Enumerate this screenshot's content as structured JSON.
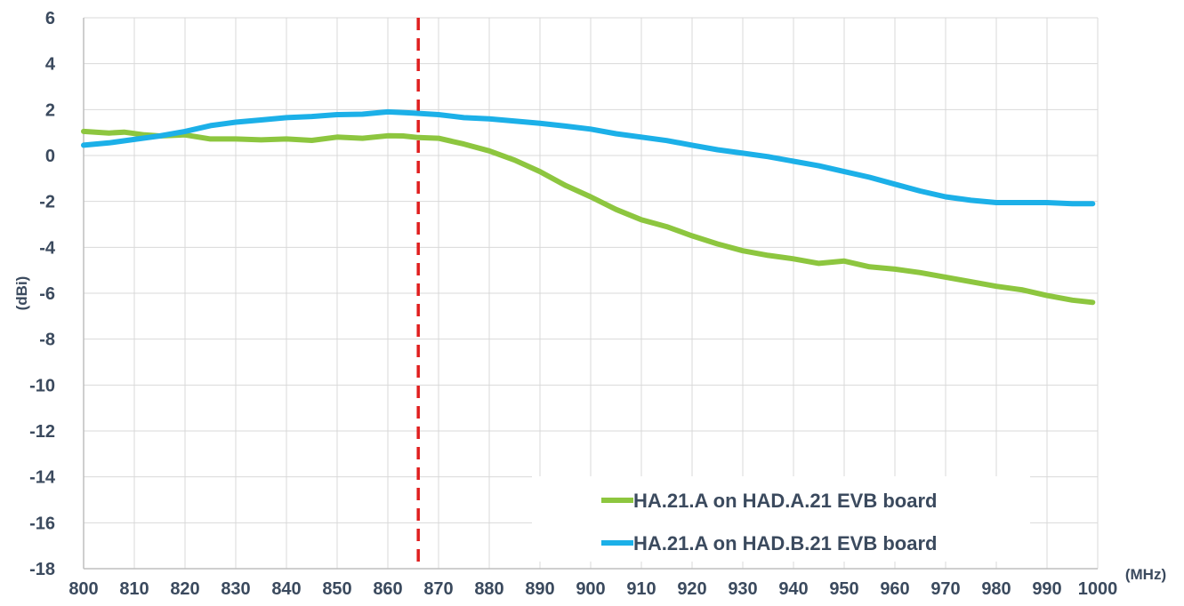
{
  "chart_data": {
    "type": "line",
    "title": "",
    "xlabel": "(MHz)",
    "ylabel": "(dBi)",
    "xlim": [
      800,
      1000
    ],
    "ylim": [
      -18,
      6
    ],
    "x_ticks": [
      800,
      810,
      820,
      830,
      840,
      850,
      860,
      870,
      880,
      890,
      900,
      910,
      920,
      930,
      940,
      950,
      960,
      970,
      980,
      990,
      1000
    ],
    "y_ticks": [
      6,
      4,
      2,
      0,
      -2,
      -4,
      -6,
      -8,
      -10,
      -12,
      -14,
      -16,
      -18
    ],
    "grid": true,
    "legend_position": "bottom-right",
    "marker_line": {
      "x": 866,
      "color": "#e02020",
      "style": "dashed"
    },
    "series": [
      {
        "name": "HA.21.A on HAD.A.21 EVB board",
        "color": "#8dc63f",
        "x": [
          800,
          805,
          808,
          812,
          815,
          820,
          825,
          830,
          835,
          840,
          845,
          850,
          855,
          860,
          863,
          866,
          870,
          875,
          880,
          885,
          890,
          895,
          900,
          905,
          910,
          915,
          920,
          925,
          930,
          935,
          940,
          945,
          950,
          955,
          960,
          965,
          970,
          975,
          980,
          985,
          990,
          995,
          999
        ],
        "y": [
          1.05,
          0.98,
          1.02,
          0.9,
          0.85,
          0.9,
          0.72,
          0.72,
          0.68,
          0.72,
          0.66,
          0.8,
          0.75,
          0.86,
          0.85,
          0.78,
          0.75,
          0.5,
          0.2,
          -0.2,
          -0.7,
          -1.3,
          -1.8,
          -2.35,
          -2.8,
          -3.1,
          -3.5,
          -3.85,
          -4.15,
          -4.35,
          -4.5,
          -4.7,
          -4.6,
          -4.85,
          -4.95,
          -5.1,
          -5.3,
          -5.5,
          -5.7,
          -5.85,
          -6.1,
          -6.3,
          -6.4
        ]
      },
      {
        "name": "HA.21.A on HAD.B.21 EVB board",
        "color": "#1cb0e8",
        "x": [
          800,
          805,
          810,
          815,
          820,
          825,
          830,
          835,
          840,
          845,
          850,
          855,
          860,
          865,
          870,
          875,
          880,
          885,
          890,
          895,
          900,
          905,
          910,
          915,
          920,
          925,
          930,
          935,
          940,
          945,
          950,
          955,
          960,
          965,
          970,
          975,
          980,
          985,
          990,
          995,
          999
        ],
        "y": [
          0.45,
          0.55,
          0.7,
          0.85,
          1.05,
          1.3,
          1.45,
          1.55,
          1.65,
          1.7,
          1.78,
          1.8,
          1.9,
          1.85,
          1.78,
          1.65,
          1.6,
          1.5,
          1.4,
          1.28,
          1.15,
          0.95,
          0.8,
          0.65,
          0.45,
          0.25,
          0.1,
          -0.05,
          -0.25,
          -0.45,
          -0.7,
          -0.95,
          -1.25,
          -1.55,
          -1.8,
          -1.95,
          -2.05,
          -2.05,
          -2.05,
          -2.1,
          -2.1
        ]
      }
    ]
  }
}
